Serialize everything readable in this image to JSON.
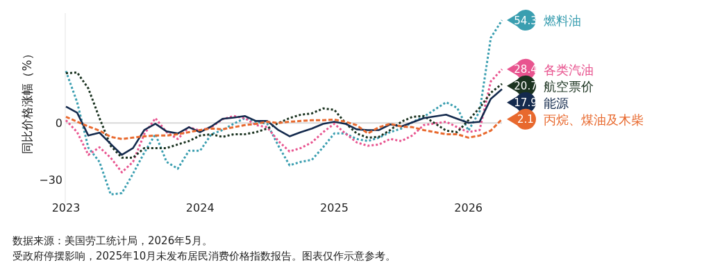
{
  "chart_data": {
    "type": "line",
    "ylabel": "同比价格涨幅（%）",
    "x": [
      "2023-01",
      "2023-02",
      "2023-03",
      "2023-04",
      "2023-05",
      "2023-06",
      "2023-07",
      "2023-08",
      "2023-09",
      "2023-10",
      "2023-11",
      "2023-12",
      "2024-01",
      "2024-02",
      "2024-03",
      "2024-04",
      "2024-05",
      "2024-06",
      "2024-07",
      "2024-08",
      "2024-09",
      "2024-10",
      "2024-11",
      "2024-12",
      "2025-01",
      "2025-02",
      "2025-03",
      "2025-04",
      "2025-05",
      "2025-06",
      "2025-07",
      "2025-08",
      "2025-09",
      "2025-11",
      "2025-12",
      "2026-01",
      "2026-02",
      "2026-03",
      "2026-04"
    ],
    "xlim": [
      "2023-01",
      "2026-04"
    ],
    "xticks": [
      {
        "value": "2023-01",
        "label": "2023"
      },
      {
        "value": "2024-01",
        "label": "2024"
      },
      {
        "value": "2025-01",
        "label": "2025"
      },
      {
        "value": "2026-01",
        "label": "2026"
      }
    ],
    "legend": "right",
    "ylim": [
      -42,
      58
    ],
    "yticks": [
      {
        "value": -30,
        "label": "−30"
      },
      0
    ],
    "ref_lines": [
      {
        "axis": "y",
        "value": 0,
        "color": "#d9d9d9"
      }
    ],
    "series": [
      {
        "name": "燃料油",
        "color": "#3a9eb0",
        "line_style": "dotted",
        "values": [
          27.4,
          11,
          -13,
          -20.5,
          -37.7,
          -37,
          -26.7,
          -15.7,
          -5.9,
          -20.5,
          -24.1,
          -14.6,
          -14.6,
          -5.9,
          -3.7,
          -0.4,
          2.6,
          0.7,
          -0.4,
          -12,
          -22.3,
          -20.5,
          -19.4,
          -12.8,
          -5.5,
          -5.5,
          -8.4,
          -9.5,
          -7.7,
          -4.8,
          -2.9,
          0.5,
          3.3,
          11,
          8,
          -4,
          6.2,
          45,
          54.3
        ],
        "value_labels": [
          null,
          null,
          null,
          null,
          null,
          null,
          null,
          null,
          null,
          null,
          null,
          null,
          null,
          null,
          null,
          null,
          null,
          null,
          null,
          null,
          null,
          null,
          null,
          null,
          null,
          null,
          null,
          null,
          null,
          null,
          null,
          null,
          null,
          null,
          null,
          null,
          null,
          null,
          "54.3"
        ]
      },
      {
        "name": "各类汽油",
        "color": "#e8548f",
        "line_style": "dotted",
        "values": [
          1.5,
          -4.8,
          -16.8,
          -12.8,
          -18.3,
          -26,
          -20.5,
          -5.9,
          2.6,
          -4.8,
          -8.4,
          -2.2,
          -4,
          -2.2,
          2,
          3.7,
          2.6,
          -1.1,
          -2.2,
          -9.5,
          -15,
          -13.2,
          -10.2,
          -4.8,
          -0.4,
          -5.5,
          -10.2,
          -12,
          -11.3,
          -8.4,
          -9.5,
          -6.5,
          -1.1,
          0.7,
          -2.2,
          -4.8,
          -3.7,
          22,
          28.4
        ],
        "value_labels": [
          null,
          null,
          null,
          null,
          null,
          null,
          null,
          null,
          null,
          null,
          null,
          null,
          null,
          null,
          null,
          null,
          null,
          null,
          null,
          null,
          null,
          null,
          null,
          null,
          null,
          null,
          null,
          null,
          null,
          null,
          null,
          null,
          null,
          null,
          null,
          null,
          null,
          null,
          "28.4"
        ]
      },
      {
        "name": "航空票价",
        "color": "#1b3320",
        "line_style": "dotted",
        "values": [
          26.3,
          26.7,
          18.3,
          2.6,
          -12,
          -18.3,
          -18.3,
          -13.2,
          -13.2,
          -13.2,
          -11.3,
          -9.5,
          -6.6,
          -5.9,
          -7.3,
          -5.9,
          -5.9,
          -4.8,
          -2.9,
          0,
          2.6,
          4.4,
          5.1,
          7.7,
          7,
          0,
          -5.5,
          -7.7,
          -7.3,
          -3.7,
          0.7,
          3.3,
          3.7,
          -4,
          -4.8,
          1.5,
          8,
          16,
          20.7
        ],
        "value_labels": [
          null,
          null,
          null,
          null,
          null,
          null,
          null,
          null,
          null,
          null,
          null,
          null,
          null,
          null,
          null,
          null,
          null,
          null,
          null,
          null,
          null,
          null,
          null,
          null,
          null,
          null,
          null,
          null,
          null,
          null,
          null,
          null,
          null,
          null,
          null,
          null,
          null,
          null,
          "20.7"
        ]
      },
      {
        "name": "能源",
        "color": "#142a4d",
        "line_style": "solid",
        "values": [
          8.7,
          5.5,
          -6.6,
          -5.1,
          -11,
          -16.8,
          -13.2,
          -3.7,
          -0.4,
          -4.4,
          -5.5,
          -2.2,
          -4.8,
          -1.8,
          2.2,
          2.9,
          3.7,
          1.1,
          1.1,
          -3.7,
          -7,
          -4.8,
          -2.9,
          -0.4,
          0.7,
          -0.4,
          -3.3,
          -3.7,
          -3.7,
          -0.7,
          -1.8,
          0.4,
          2.6,
          4.4,
          2.2,
          0.1,
          0.7,
          12.8,
          17.9
        ],
        "value_labels": [
          null,
          null,
          null,
          null,
          null,
          null,
          null,
          null,
          null,
          null,
          null,
          null,
          null,
          null,
          null,
          null,
          null,
          null,
          null,
          null,
          null,
          null,
          null,
          null,
          null,
          null,
          null,
          null,
          null,
          null,
          null,
          null,
          null,
          null,
          null,
          null,
          null,
          null,
          "17.9"
        ]
      },
      {
        "name": "丙烷、煤油及木柴",
        "color": "#e8692e",
        "line_style": "dashed",
        "values": [
          3.3,
          0.7,
          -1.8,
          -4,
          -7.3,
          -8.4,
          -7.7,
          -7,
          -6.6,
          -6.6,
          -5.9,
          -4.8,
          -3.7,
          -2.9,
          -3.3,
          -2.2,
          -1.1,
          -0.4,
          0.7,
          0,
          0.7,
          1.1,
          1.5,
          1.5,
          1.8,
          0.7,
          -1.1,
          -5.5,
          -2.2,
          -0.4,
          -1.8,
          -2.2,
          -3.7,
          -5.9,
          -5.9,
          -7.7,
          -6.6,
          -4,
          2.1
        ],
        "value_labels": [
          null,
          null,
          null,
          null,
          null,
          null,
          null,
          null,
          null,
          null,
          null,
          null,
          null,
          null,
          null,
          null,
          null,
          null,
          null,
          null,
          null,
          null,
          null,
          null,
          null,
          null,
          null,
          null,
          null,
          null,
          null,
          null,
          null,
          null,
          null,
          null,
          null,
          null,
          "2.1"
        ]
      }
    ],
    "annotations": [
      "数据来源：美国劳工统计局，2026年5月。",
      "受政府停摆影响，2025年10月未发布居民消费价格指数报告。图表仅作示意参考。"
    ]
  }
}
